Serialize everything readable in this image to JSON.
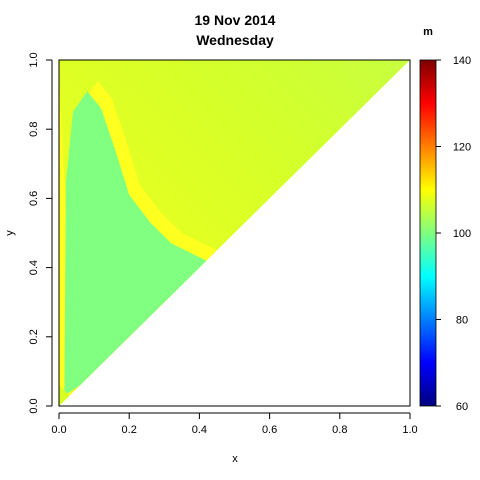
{
  "chart_data": {
    "type": "heatmap",
    "title_line1": "19 Nov 2014",
    "title_line2": "Wednesday",
    "xlabel": "x",
    "ylabel": "y",
    "xlim": [
      0,
      1
    ],
    "ylim": [
      0,
      1
    ],
    "x_ticks": [
      "0.0",
      "0.2",
      "0.4",
      "0.6",
      "0.8",
      "1.0"
    ],
    "y_ticks": [
      "0.0",
      "0.2",
      "0.4",
      "0.6",
      "0.8",
      "1.0"
    ],
    "domain": "upper triangle y >= x",
    "colorbar": {
      "title": "m",
      "range": [
        60,
        140
      ],
      "ticks": [
        "60",
        "80",
        "100",
        "120",
        "140"
      ],
      "colors": [
        "#00007f",
        "#0000ff",
        "#007fff",
        "#00ffff",
        "#7fff7f",
        "#ffff00",
        "#ff7f00",
        "#ff0000",
        "#7f0000"
      ]
    },
    "regions": [
      {
        "label": "low (~100)",
        "color": "#80ff80",
        "boundary_x": [
          0.015,
          0.02,
          0.04,
          0.08,
          0.12,
          0.16,
          0.2,
          0.26,
          0.32,
          0.38,
          0.42
        ],
        "boundary_y": [
          0.03,
          0.65,
          0.85,
          0.91,
          0.86,
          0.74,
          0.61,
          0.53,
          0.47,
          0.44,
          0.42
        ]
      },
      {
        "label": "mid (~108)",
        "color": "#d8ff20"
      },
      {
        "label": "high (~110)",
        "color": "#ffff20"
      }
    ]
  }
}
